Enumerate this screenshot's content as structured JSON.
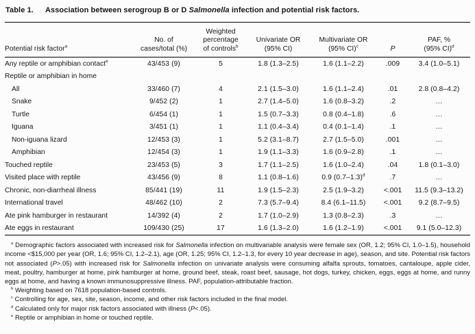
{
  "title": {
    "label": "Table 1.",
    "pre": "Association between serogroup B or D ",
    "italic": "Salmonella",
    "post": " infection and potential risk factors."
  },
  "table": {
    "columns": [
      {
        "lines": [
          "Potential risk factor"
        ],
        "sup": "a",
        "italic": false
      },
      {
        "lines": [
          "No. of",
          "cases/total (%)"
        ],
        "sup": "",
        "italic": false
      },
      {
        "lines": [
          "Weighted",
          "percentage",
          "of controls"
        ],
        "sup": "b",
        "italic": false
      },
      {
        "lines": [
          "Univariate OR",
          "(95% CI)"
        ],
        "sup": "",
        "italic": false
      },
      {
        "lines": [
          "Multivariate OR",
          "(95% CI)"
        ],
        "sup": "c",
        "italic": false
      },
      {
        "lines": [
          "P"
        ],
        "sup": "",
        "italic": true
      },
      {
        "lines": [
          "PAF, %",
          "(95% CI)"
        ],
        "sup": "d",
        "italic": false
      }
    ],
    "rows": [
      {
        "label": "Any reptile or amphibian contact",
        "label_sup": "e",
        "indent": false,
        "cells": [
          "43/453 (9)",
          "5",
          "1.8 (1.3–2.5)",
          "1.6 (1.1–2.2)",
          ".009",
          "3.4 (1.0–5.1)"
        ]
      },
      {
        "label": "Reptile or amphibian in home",
        "label_sup": "",
        "indent": false,
        "cells": [
          "",
          "",
          "",
          "",
          "",
          ""
        ]
      },
      {
        "label": "All",
        "label_sup": "",
        "indent": true,
        "cells": [
          "33/460 (7)",
          "4",
          "2.1 (1.5–3.0)",
          "1.6 (1.1–2.4)",
          ".01",
          "2.8 (0.8–4.2)"
        ]
      },
      {
        "label": "Snake",
        "label_sup": "",
        "indent": true,
        "cells": [
          "9/452 (2)",
          "1",
          "2.7 (1.4–5.0)",
          "1.6 (0.8–3.2)",
          ".2",
          "…"
        ]
      },
      {
        "label": "Turtle",
        "label_sup": "",
        "indent": true,
        "cells": [
          "6/454 (1)",
          "1",
          "1.5 (0.7–3.3)",
          "0.8 (0.4–1.8)",
          ".6",
          "…"
        ]
      },
      {
        "label": "Iguana",
        "label_sup": "",
        "indent": true,
        "cells": [
          "3/451 (1)",
          "1",
          "1.1 (0.4–3.4)",
          "0.4 (0.1–1.4)",
          ".1",
          "…"
        ]
      },
      {
        "label": "Non-iguana lizard",
        "label_sup": "",
        "indent": true,
        "cells": [
          "12/453 (3)",
          "1",
          "5.2 (3.1–8.7)",
          "2.7 (1.5–5.0)",
          ".001",
          "…"
        ]
      },
      {
        "label": "Amphibian",
        "label_sup": "",
        "indent": true,
        "cells": [
          "12/454 (3)",
          "1",
          "1.9 (1.1–3.3)",
          "1.6 (0.9–2.8)",
          ".1",
          "…"
        ]
      },
      {
        "label": "Touched reptile",
        "label_sup": "",
        "indent": false,
        "cells": [
          "23/453 (5)",
          "3",
          "1.7 (1.1–2.5)",
          "1.6 (1.0–2.4)",
          ".04",
          "1.8 (0.1–3.0)"
        ]
      },
      {
        "label": "Visited place with reptile",
        "label_sup": "",
        "indent": false,
        "cells": [
          "43/456 (9)",
          "8",
          "1.1 (0.8–1.6)",
          {
            "t": "0.9 (0.7–1.3)",
            "sup": "d"
          },
          ".7",
          "…"
        ]
      },
      {
        "label": "Chronic, non-diarrheal illness",
        "label_sup": "",
        "indent": false,
        "cells": [
          "85/441 (19)",
          "11",
          "1.9 (1.5–2.3)",
          "2.5 (1.9–3.2)",
          "<.001",
          "11.5 (9.3–13.2)"
        ]
      },
      {
        "label": "International travel",
        "label_sup": "",
        "indent": false,
        "cells": [
          "48/462 (10)",
          "2",
          "7.3 (5.7–9.4)",
          "8.4 (6.1–11.5)",
          "<.001",
          "9.2 (8.7–9.5)"
        ]
      },
      {
        "label": "Ate pink hamburger in restaurant",
        "label_sup": "",
        "indent": false,
        "cells": [
          "14/392 (4)",
          "2",
          "1.7 (1.0–2.9)",
          "1.3 (0.8–2.3)",
          ".3",
          "…"
        ]
      },
      {
        "label": "Ate eggs in restaurant",
        "label_sup": "",
        "indent": false,
        "cells": [
          "109/430 (25)",
          "17",
          "1.6 (1.3–2.0)",
          "1.6 (1.2–1.9)",
          "<.001",
          "9.1 (5.0–12.3)"
        ]
      }
    ]
  },
  "footnotes": [
    [
      {
        "t": "a",
        "sup": true
      },
      {
        "t": " Demographic factors associated with increased risk for "
      },
      {
        "t": "Salmonella",
        "i": true
      },
      {
        "t": " infection on multivariable analysis were female sex (OR, 1.2; 95% CI, 1.0–1.5), household income <$15,000 per year (OR, 1.6; 95% CI, 1.2–2.1), age (OR, 1.25; 95% CI, 1.2–1.3, for every 10 year decrease in age), season, and site. Potential risk factors not associated ("
      },
      {
        "t": "P",
        "i": true
      },
      {
        "t": ">.05) with increased risk for "
      },
      {
        "t": "Salmonella",
        "i": true
      },
      {
        "t": " infection on univariate analysis were consuming alfalfa sprouts, tomatoes, cantaloupe, apple cider, meat, poultry, hamburger at home, pink hamburger at home, ground beef, steak, roast beef, sausage, hot dogs, turkey, chicken, eggs, eggs at home, and runny eggs at home, and having a known immunosuppressive illness. PAF, population-attributable fraction."
      }
    ],
    [
      {
        "t": "b",
        "sup": true
      },
      {
        "t": " Weighting based on 7618 population-based controls."
      }
    ],
    [
      {
        "t": "c",
        "sup": true
      },
      {
        "t": " Controlling for age, sex, site, season, income, and other risk factors included in the final model."
      }
    ],
    [
      {
        "t": "d",
        "sup": true
      },
      {
        "t": " Calculated only for major risk factors associated with illness ("
      },
      {
        "t": "P",
        "i": true
      },
      {
        "t": "<.05)."
      }
    ],
    [
      {
        "t": "e",
        "sup": true
      },
      {
        "t": " Reptile or amphibian in home or touched reptile."
      }
    ]
  ]
}
